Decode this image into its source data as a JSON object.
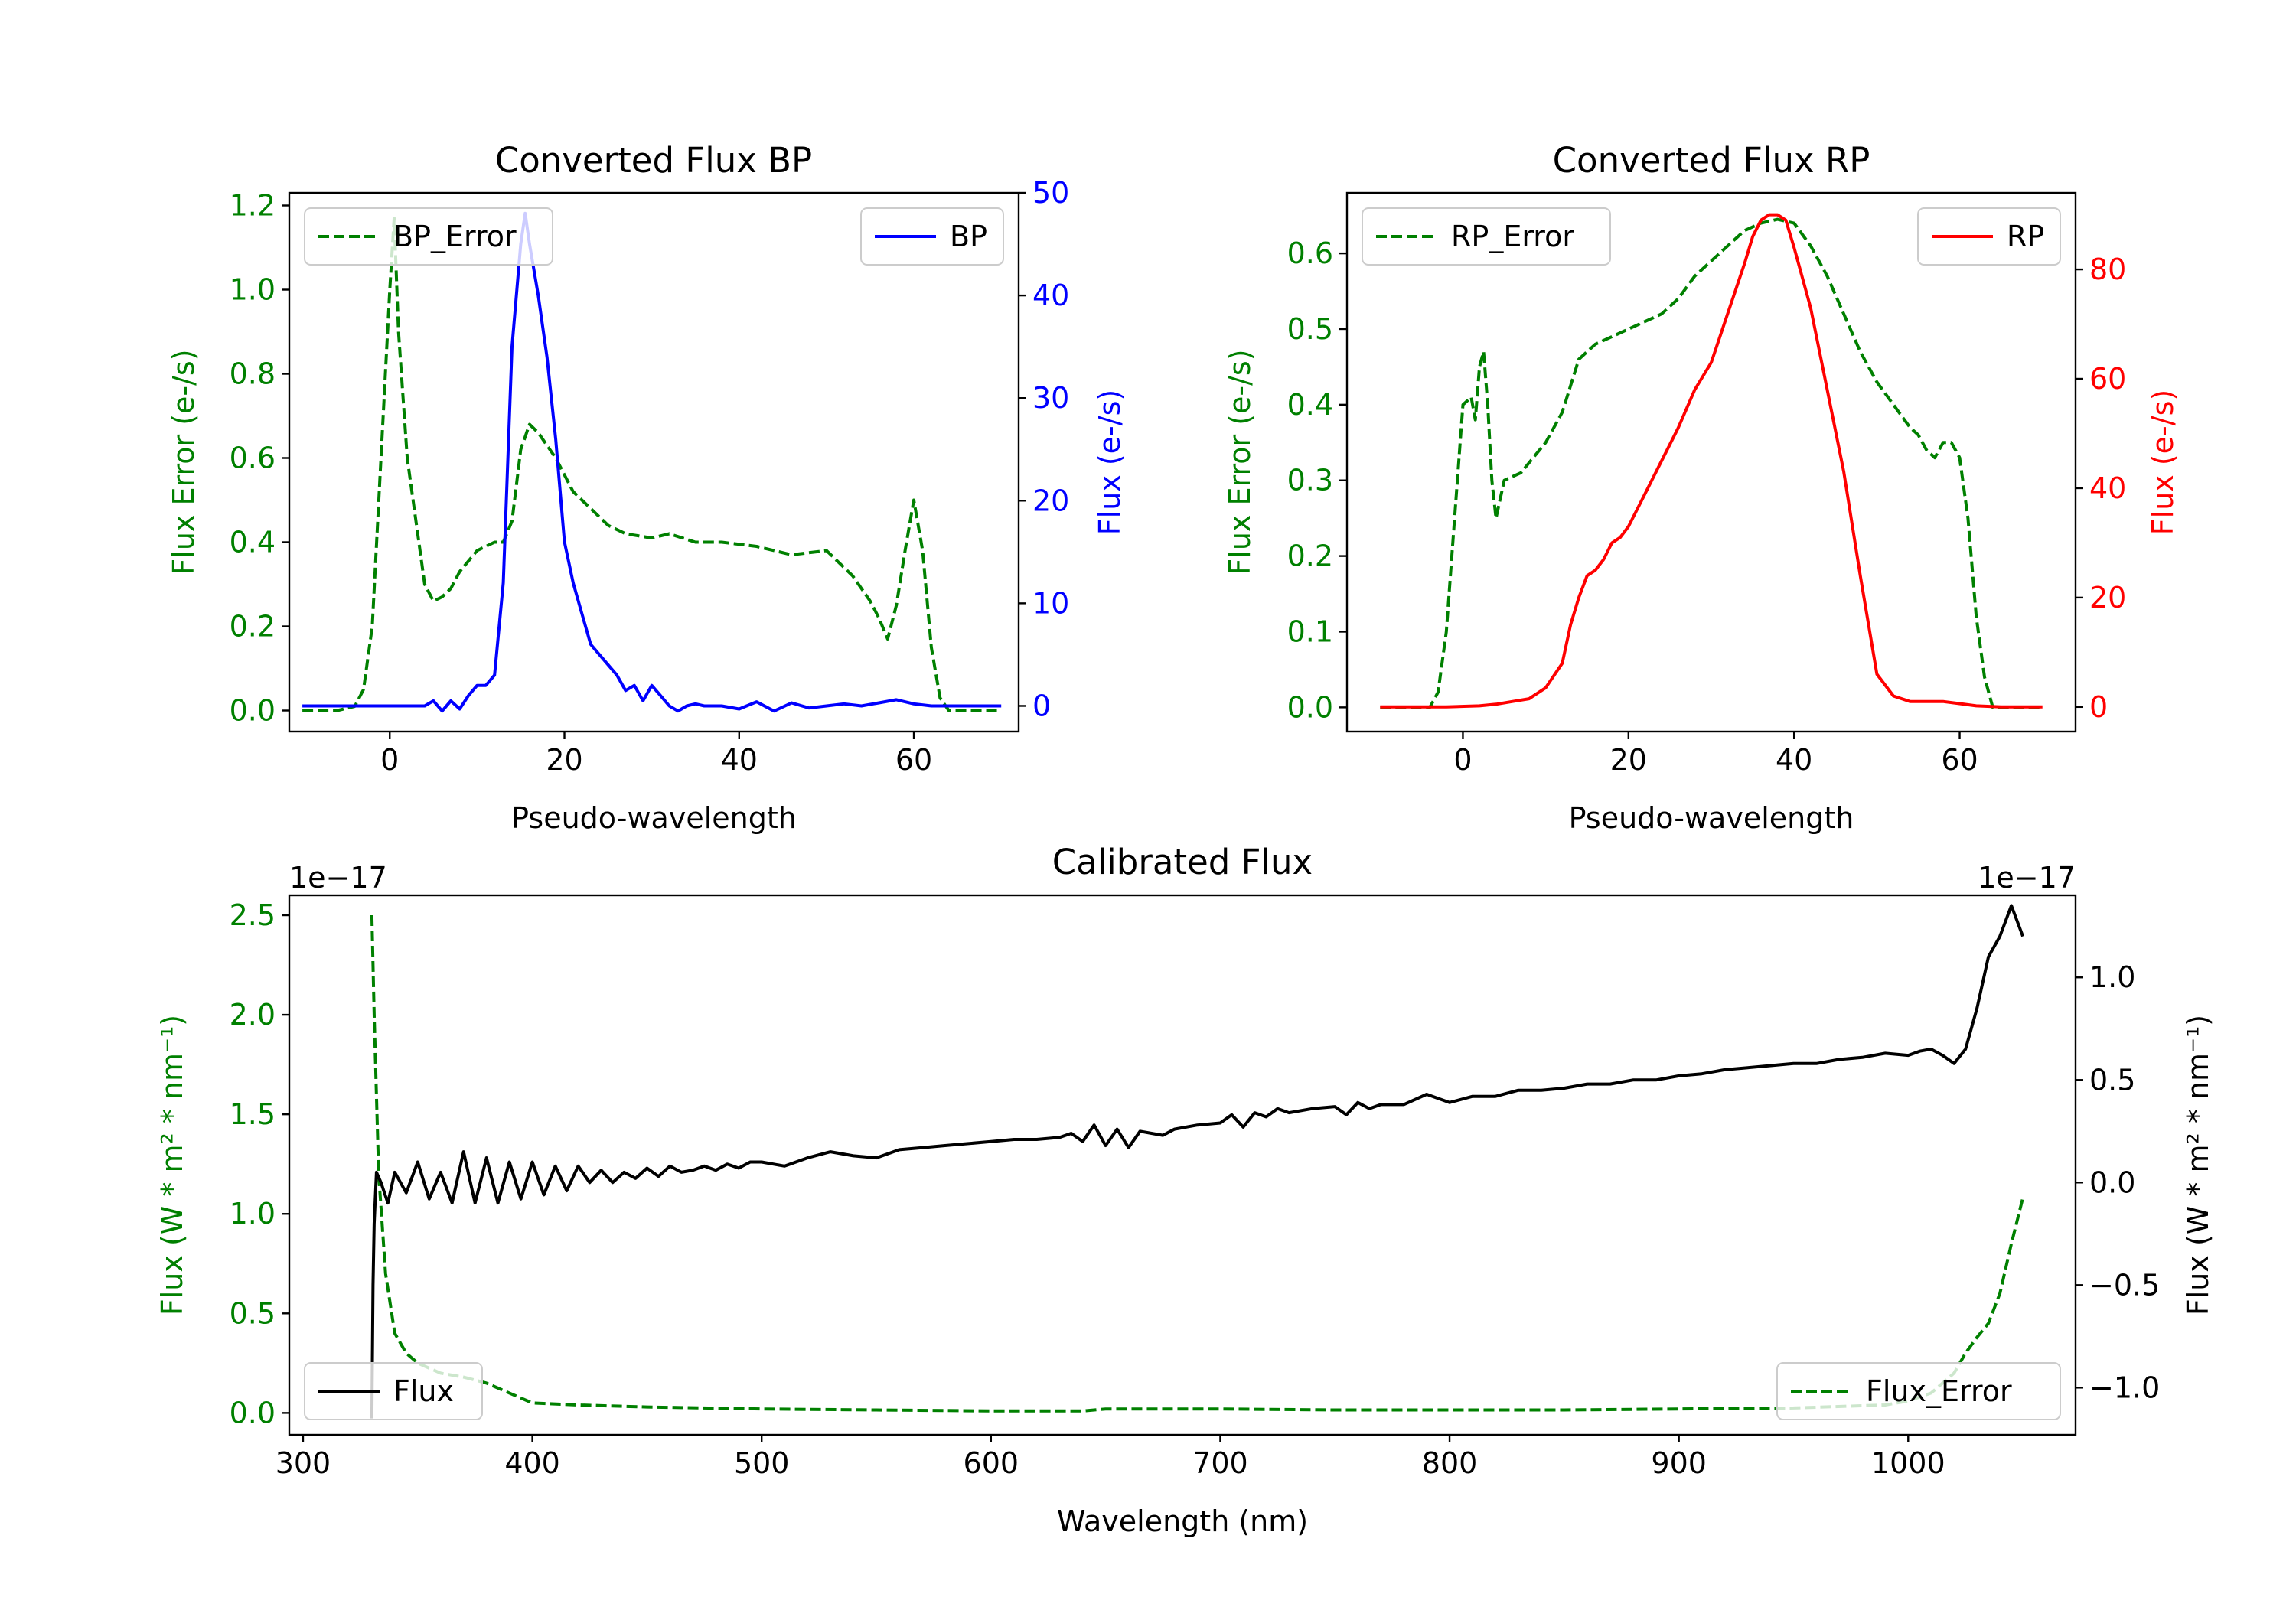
{
  "colors": {
    "error": "#008000",
    "bp": "#0000ff",
    "rp": "#ff0000",
    "flux": "#000000",
    "axis": "#000000"
  },
  "chart_data": [
    {
      "type": "line",
      "title": "Converted Flux BP",
      "xlabel": "Pseudo-wavelength",
      "ylabel_left": "Flux Error (e-/s)",
      "ylabel_right": "Flux (e-/s)",
      "xlim": [
        -11.5,
        72
      ],
      "ylim_left": [
        -0.05,
        1.23
      ],
      "ylim_right": [
        -2.5,
        50
      ],
      "xticks": [
        0,
        20,
        40,
        60
      ],
      "xtick_labels": [
        "0",
        "20",
        "40",
        "60"
      ],
      "yticks_left": [
        0,
        0.2,
        0.4,
        0.6,
        0.8,
        1.0,
        1.2
      ],
      "ytick_labels_left": [
        "0.0",
        "0.2",
        "0.4",
        "0.6",
        "0.8",
        "1.0",
        "1.2"
      ],
      "yticks_right": [
        0,
        10,
        20,
        30,
        40,
        50
      ],
      "ytick_labels_right": [
        "0",
        "10",
        "20",
        "30",
        "40",
        "50"
      ],
      "legend_left": "BP_Error",
      "legend_right": "BP",
      "series": [
        {
          "name": "BP_Error",
          "axis": "left",
          "style": "dashed",
          "color": "#008000",
          "x": [
            -10,
            -6,
            -4,
            -3,
            -2,
            -1,
            0,
            0.5,
            1,
            2,
            3,
            4,
            5,
            6,
            7,
            8,
            10,
            12,
            13,
            14,
            15,
            16,
            17,
            19,
            21,
            23,
            25,
            27,
            30,
            32,
            35,
            38,
            42,
            46,
            50,
            53,
            55,
            56,
            57,
            58,
            59,
            60,
            61,
            62,
            63,
            64,
            66,
            68,
            70
          ],
          "y": [
            0,
            0,
            0.01,
            0.05,
            0.2,
            0.6,
            1.0,
            1.17,
            0.9,
            0.6,
            0.45,
            0.3,
            0.26,
            0.27,
            0.29,
            0.33,
            0.38,
            0.4,
            0.4,
            0.45,
            0.62,
            0.68,
            0.66,
            0.6,
            0.52,
            0.48,
            0.44,
            0.42,
            0.41,
            0.42,
            0.4,
            0.4,
            0.39,
            0.37,
            0.38,
            0.32,
            0.26,
            0.22,
            0.17,
            0.25,
            0.38,
            0.5,
            0.38,
            0.15,
            0.03,
            0,
            0,
            0,
            0
          ]
        },
        {
          "name": "BP",
          "axis": "right",
          "style": "solid",
          "color": "#0000ff",
          "x": [
            -10,
            -5,
            0,
            2,
            4,
            5,
            6,
            7,
            8,
            9,
            10,
            11,
            12,
            13,
            14,
            15,
            15.5,
            16,
            17,
            18,
            19,
            20,
            21,
            22,
            23,
            24,
            25,
            26,
            27,
            28,
            29,
            30,
            31,
            32,
            33,
            34,
            35,
            36,
            38,
            40,
            42,
            44,
            46,
            48,
            50,
            52,
            54,
            56,
            58,
            60,
            62,
            65,
            70
          ],
          "y": [
            0,
            0,
            0,
            0,
            0,
            0.5,
            -0.5,
            0.5,
            -0.3,
            1,
            2,
            2,
            3,
            12,
            35,
            45,
            48,
            45,
            40,
            34,
            26,
            16,
            12,
            9,
            6,
            5,
            4,
            3,
            1.5,
            2,
            0.5,
            2,
            1,
            0,
            -0.5,
            0,
            0.2,
            0,
            0,
            -0.3,
            0.4,
            -0.5,
            0.3,
            -0.2,
            0,
            0.2,
            0,
            0.3,
            0.6,
            0.2,
            0,
            0,
            0
          ]
        }
      ]
    },
    {
      "type": "line",
      "title": "Converted Flux RP",
      "xlabel": "Pseudo-wavelength",
      "ylabel_left": "Flux Error (e-/s)",
      "ylabel_right": "Flux (e-/s)",
      "xlim": [
        -14,
        74
      ],
      "ylim_left": [
        -0.032,
        0.68
      ],
      "ylim_right": [
        -4.5,
        94
      ],
      "xticks": [
        0,
        20,
        40,
        60
      ],
      "xtick_labels": [
        "0",
        "20",
        "40",
        "60"
      ],
      "yticks_left": [
        0,
        0.1,
        0.2,
        0.3,
        0.4,
        0.5,
        0.6
      ],
      "ytick_labels_left": [
        "0.0",
        "0.1",
        "0.2",
        "0.3",
        "0.4",
        "0.5",
        "0.6"
      ],
      "yticks_right": [
        0,
        20,
        40,
        60,
        80
      ],
      "ytick_labels_right": [
        "0",
        "20",
        "40",
        "60",
        "80"
      ],
      "legend_left": "RP_Error",
      "legend_right": "RP",
      "series": [
        {
          "name": "RP_Error",
          "axis": "left",
          "style": "dashed",
          "color": "#008000",
          "x": [
            -10,
            -4,
            -3,
            -2,
            -1,
            0,
            1,
            1.5,
            2,
            2.5,
            3,
            3.5,
            4,
            5,
            7,
            10,
            12,
            14,
            16,
            18,
            20,
            22,
            24,
            26,
            28,
            30,
            32,
            34,
            36,
            38,
            40,
            42,
            44,
            46,
            48,
            50,
            52,
            54,
            55,
            56,
            57,
            58,
            59,
            60,
            61,
            62,
            63,
            64,
            66,
            70
          ],
          "y": [
            0,
            0,
            0.02,
            0.1,
            0.25,
            0.4,
            0.41,
            0.38,
            0.45,
            0.47,
            0.4,
            0.3,
            0.25,
            0.3,
            0.31,
            0.35,
            0.39,
            0.46,
            0.48,
            0.49,
            0.5,
            0.51,
            0.52,
            0.54,
            0.57,
            0.59,
            0.61,
            0.63,
            0.64,
            0.645,
            0.64,
            0.61,
            0.57,
            0.52,
            0.47,
            0.43,
            0.4,
            0.37,
            0.36,
            0.34,
            0.33,
            0.35,
            0.35,
            0.33,
            0.25,
            0.12,
            0.04,
            0,
            0,
            0
          ]
        },
        {
          "name": "RP",
          "axis": "right",
          "style": "solid",
          "color": "#ff0000",
          "x": [
            -10,
            -2,
            2,
            4,
            6,
            8,
            10,
            12,
            13,
            14,
            15,
            16,
            17,
            18,
            19,
            20,
            22,
            24,
            26,
            28,
            30,
            32,
            34,
            35,
            36,
            37,
            38,
            39,
            40,
            42,
            44,
            46,
            48,
            50,
            52,
            54,
            56,
            58,
            60,
            62,
            65,
            70
          ],
          "y": [
            0,
            0,
            0.2,
            0.5,
            1,
            1.5,
            3.5,
            8,
            15,
            20,
            24,
            25,
            27,
            30,
            31,
            33,
            39,
            45,
            51,
            58,
            63,
            72,
            81,
            86,
            89,
            90,
            90,
            89,
            84,
            73,
            58,
            43,
            24,
            6,
            2,
            1,
            1,
            1,
            0.6,
            0.2,
            0,
            0
          ]
        }
      ]
    },
    {
      "type": "line",
      "title": "Calibrated Flux",
      "xlabel": "Wavelength (nm)",
      "ylabel_left": "Flux (W * m² * nm⁻¹)",
      "ylabel_right": "Flux (W * m² * nm⁻¹)",
      "offset_left": "1e−17",
      "offset_right": "1e−17",
      "xlim": [
        294,
        1073
      ],
      "ylim_left": [
        -0.11,
        2.6
      ],
      "ylim_right": [
        -1.23,
        1.4
      ],
      "xticks": [
        300,
        400,
        500,
        600,
        700,
        800,
        900,
        1000
      ],
      "xtick_labels": [
        "300",
        "400",
        "500",
        "600",
        "700",
        "800",
        "900",
        "1000"
      ],
      "yticks_left": [
        0,
        0.5,
        1.0,
        1.5,
        2.0,
        2.5
      ],
      "ytick_labels_left": [
        "0.0",
        "0.5",
        "1.0",
        "1.5",
        "2.0",
        "2.5"
      ],
      "yticks_right": [
        -1.0,
        -0.5,
        0.0,
        0.5,
        1.0
      ],
      "ytick_labels_right": [
        "−1.0",
        "−0.5",
        "0.0",
        "0.5",
        "1.0"
      ],
      "legend_left": "Flux",
      "legend_right": "Flux_Error",
      "series": [
        {
          "name": "Flux_Error",
          "axis": "left",
          "style": "dashed",
          "color": "#008000",
          "x": [
            330,
            331,
            333,
            336,
            340,
            345,
            350,
            360,
            370,
            380,
            390,
            400,
            420,
            450,
            500,
            550,
            600,
            640,
            650,
            700,
            750,
            800,
            850,
            900,
            950,
            990,
            1000,
            1010,
            1020,
            1025,
            1030,
            1035,
            1040,
            1045,
            1050
          ],
          "y": [
            2.5,
            2.0,
            1.2,
            0.7,
            0.4,
            0.3,
            0.25,
            0.2,
            0.18,
            0.15,
            0.1,
            0.05,
            0.04,
            0.03,
            0.02,
            0.015,
            0.01,
            0.01,
            0.02,
            0.02,
            0.015,
            0.015,
            0.015,
            0.02,
            0.025,
            0.04,
            0.06,
            0.1,
            0.2,
            0.3,
            0.38,
            0.45,
            0.6,
            0.85,
            1.08
          ]
        },
        {
          "name": "Flux",
          "axis": "right",
          "style": "solid",
          "color": "#000000",
          "x": [
            330,
            330.5,
            331,
            332,
            334,
            337,
            340,
            345,
            350,
            355,
            360,
            365,
            370,
            375,
            380,
            385,
            390,
            395,
            400,
            405,
            410,
            415,
            420,
            425,
            430,
            435,
            440,
            445,
            450,
            455,
            460,
            465,
            470,
            475,
            480,
            485,
            490,
            495,
            500,
            510,
            520,
            530,
            540,
            550,
            560,
            570,
            580,
            590,
            600,
            610,
            620,
            630,
            635,
            640,
            645,
            650,
            655,
            660,
            665,
            670,
            675,
            680,
            690,
            700,
            705,
            710,
            715,
            720,
            725,
            730,
            740,
            750,
            755,
            760,
            765,
            770,
            780,
            790,
            800,
            810,
            820,
            830,
            840,
            850,
            860,
            870,
            880,
            890,
            900,
            910,
            920,
            930,
            940,
            950,
            960,
            970,
            980,
            990,
            1000,
            1005,
            1010,
            1015,
            1020,
            1025,
            1030,
            1035,
            1040,
            1045,
            1050
          ],
          "y": [
            -1.15,
            -0.5,
            -0.2,
            0.05,
            0.0,
            -0.1,
            0.05,
            -0.05,
            0.1,
            -0.08,
            0.05,
            -0.1,
            0.15,
            -0.1,
            0.12,
            -0.1,
            0.1,
            -0.08,
            0.1,
            -0.06,
            0.08,
            -0.04,
            0.08,
            0.0,
            0.06,
            0.0,
            0.05,
            0.02,
            0.07,
            0.03,
            0.08,
            0.05,
            0.06,
            0.08,
            0.06,
            0.09,
            0.07,
            0.1,
            0.1,
            0.08,
            0.12,
            0.15,
            0.13,
            0.12,
            0.16,
            0.17,
            0.18,
            0.19,
            0.2,
            0.21,
            0.21,
            0.22,
            0.24,
            0.2,
            0.28,
            0.18,
            0.26,
            0.17,
            0.25,
            0.24,
            0.23,
            0.26,
            0.28,
            0.29,
            0.33,
            0.27,
            0.34,
            0.32,
            0.36,
            0.34,
            0.36,
            0.37,
            0.33,
            0.39,
            0.36,
            0.38,
            0.38,
            0.43,
            0.39,
            0.42,
            0.42,
            0.45,
            0.45,
            0.46,
            0.48,
            0.48,
            0.5,
            0.5,
            0.52,
            0.53,
            0.55,
            0.56,
            0.57,
            0.58,
            0.58,
            0.6,
            0.61,
            0.63,
            0.62,
            0.64,
            0.65,
            0.62,
            0.58,
            0.65,
            0.85,
            1.1,
            1.2,
            1.35,
            1.2
          ]
        }
      ]
    }
  ]
}
